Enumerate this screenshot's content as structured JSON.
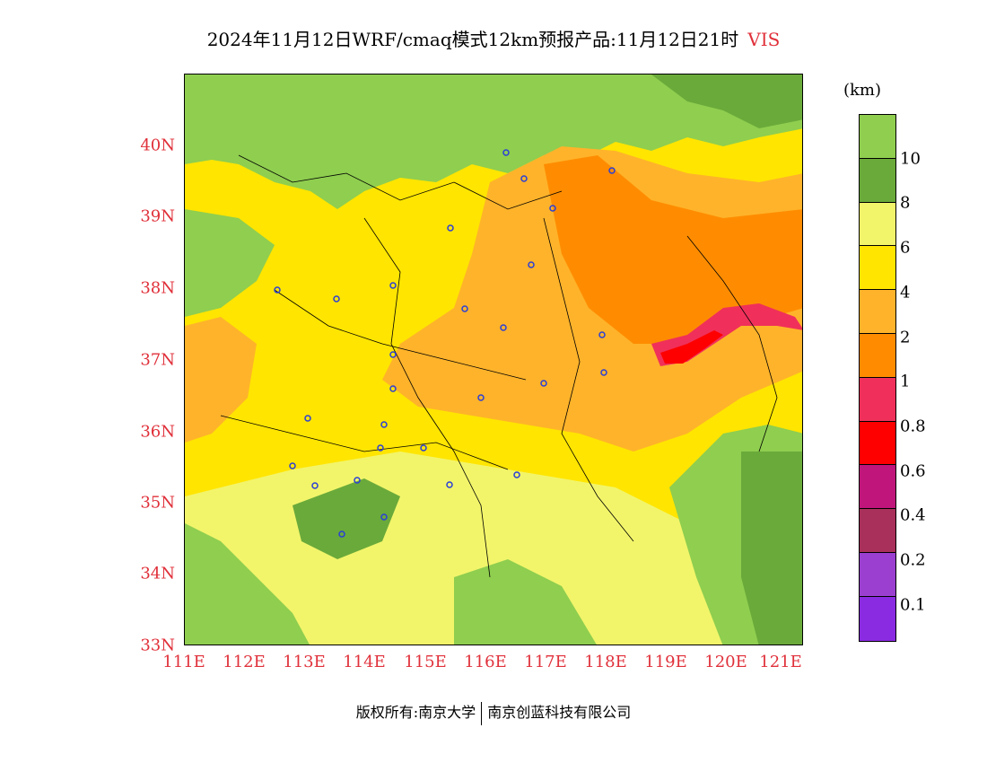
{
  "title": {
    "main": "2024年11月12日WRF/cmaq模式12km预报产品:11月12日21时",
    "variable": "VIS"
  },
  "map": {
    "lat_ticks": [
      "40N",
      "39N",
      "38N",
      "37N",
      "36N",
      "35N",
      "34N",
      "33N"
    ],
    "lon_ticks": [
      "111E",
      "112E",
      "113E",
      "114E",
      "115E",
      "116E",
      "117E",
      "118E",
      "119E",
      "120E",
      "121E"
    ]
  },
  "colorbar": {
    "unit": "(km)",
    "labels": [
      "10",
      "8",
      "6",
      "4",
      "2",
      "1",
      "0.8",
      "0.6",
      "0.4",
      "0.2",
      "0.1"
    ],
    "colors": [
      "#8fce4f",
      "#6aaa3a",
      "#f2f56a",
      "#ffe500",
      "#ffb32a",
      "#ff8c00",
      "#f0305a",
      "#ff0000",
      "#c0157a",
      "#a8305a",
      "#9b3fd0",
      "#8a2be2"
    ]
  },
  "footer": {
    "left": "版权所有:南京大学",
    "right": "南京创蓝科技有限公司"
  }
}
